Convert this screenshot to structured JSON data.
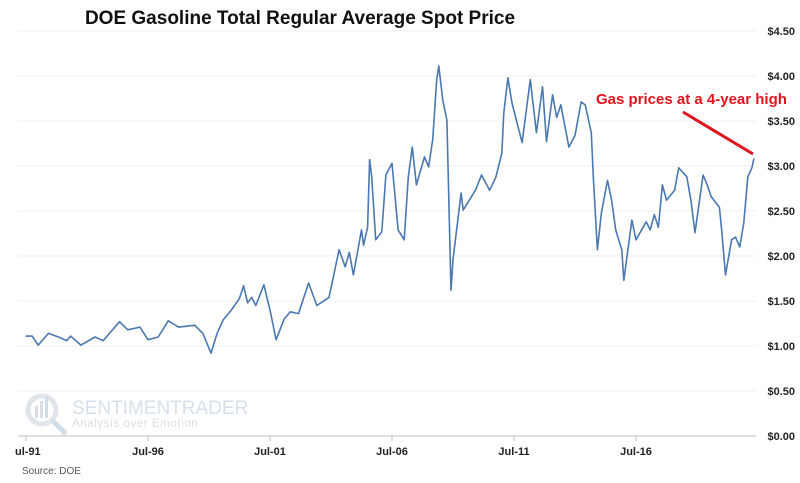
{
  "chart_data": {
    "type": "line",
    "title": "DOE Gasoline Total Regular Average Spot Price",
    "xlabel": "",
    "ylabel": "",
    "x_tick_labels": [
      "ul-91",
      "Jul-96",
      "Jul-01",
      "Jul-06",
      "Jul-11",
      "Jul-16"
    ],
    "y_tick_labels": [
      "$0.00",
      "$0.50",
      "$1.00",
      "$1.50",
      "$2.00",
      "$2.50",
      "$3.00",
      "$3.50",
      "$4.00",
      "$4.50"
    ],
    "ylim": [
      0,
      4.5
    ],
    "xlim": [
      "1991-07",
      "2021-05"
    ],
    "grid": true,
    "legend": "none",
    "series_color": "#4a78b0",
    "annotation": {
      "text": "Gas prices at a 4-year high",
      "color": "#e0141e"
    },
    "source": "Source: DOE",
    "watermark": {
      "brand": "SENTIMENTRADER",
      "tagline": "Analysis over Emotion"
    },
    "series": [
      {
        "x": [
          "1991-07",
          "1991-10",
          "1992-01",
          "1992-06",
          "1992-11",
          "1993-03",
          "1993-05",
          "1993-10",
          "1994-05",
          "1994-09",
          "1995-05",
          "1995-09",
          "1996-03",
          "1996-07",
          "1996-12",
          "1997-05",
          "1997-10",
          "1998-06",
          "1998-10",
          "1999-02",
          "1999-05",
          "1999-08",
          "1999-12",
          "2000-04",
          "2000-06",
          "2000-08",
          "2000-10",
          "2000-12",
          "2001-04",
          "2001-07",
          "2001-10",
          "2002-02",
          "2002-05",
          "2002-09",
          "2003-02",
          "2003-06",
          "2003-12",
          "2004-05",
          "2004-08",
          "2004-10",
          "2004-12",
          "2005-04",
          "2005-05",
          "2005-07",
          "2005-08",
          "2005-09",
          "2005-11",
          "2006-02",
          "2006-04",
          "2006-07",
          "2006-10",
          "2007-01",
          "2007-03",
          "2007-05",
          "2007-07",
          "2007-11",
          "2008-01",
          "2008-03",
          "2008-05",
          "2008-06",
          "2008-08",
          "2008-10",
          "2008-12",
          "2009-01",
          "2009-05",
          "2009-06",
          "2009-12",
          "2010-03",
          "2010-07",
          "2010-10",
          "2011-01",
          "2011-02",
          "2011-04",
          "2011-06",
          "2011-11",
          "2012-03",
          "2012-06",
          "2012-09",
          "2012-11",
          "2013-02",
          "2013-04",
          "2013-06",
          "2013-10",
          "2014-01",
          "2014-04",
          "2014-06",
          "2014-09",
          "2014-10",
          "2014-12",
          "2015-02",
          "2015-05",
          "2015-07",
          "2015-09",
          "2015-12",
          "2016-01",
          "2016-03",
          "2016-05",
          "2016-07",
          "2016-12",
          "2017-02",
          "2017-04",
          "2017-06",
          "2017-08",
          "2017-10",
          "2018-02",
          "2018-04",
          "2018-08",
          "2018-10",
          "2018-12",
          "2019-04",
          "2019-06",
          "2019-08",
          "2019-12",
          "2020-01",
          "2020-03",
          "2020-06",
          "2020-08",
          "2020-10",
          "2020-12",
          "2021-02",
          "2021-04",
          "2021-05"
        ],
        "y": [
          1.11,
          1.11,
          1.01,
          1.14,
          1.1,
          1.06,
          1.11,
          1.01,
          1.1,
          1.06,
          1.27,
          1.18,
          1.21,
          1.07,
          1.1,
          1.28,
          1.21,
          1.23,
          1.14,
          0.92,
          1.14,
          1.29,
          1.4,
          1.53,
          1.67,
          1.48,
          1.54,
          1.45,
          1.68,
          1.4,
          1.07,
          1.3,
          1.38,
          1.36,
          1.7,
          1.45,
          1.54,
          2.07,
          1.88,
          2.04,
          1.79,
          2.29,
          2.12,
          2.32,
          3.07,
          2.88,
          2.18,
          2.27,
          2.9,
          3.03,
          2.29,
          2.18,
          2.88,
          3.21,
          2.79,
          3.1,
          2.99,
          3.29,
          3.96,
          4.11,
          3.73,
          3.51,
          1.62,
          1.96,
          2.7,
          2.51,
          2.73,
          2.9,
          2.73,
          2.87,
          3.14,
          3.59,
          3.98,
          3.7,
          3.26,
          3.96,
          3.37,
          3.88,
          3.27,
          3.79,
          3.54,
          3.68,
          3.21,
          3.34,
          3.71,
          3.68,
          3.37,
          2.88,
          2.07,
          2.48,
          2.84,
          2.62,
          2.29,
          2.07,
          1.73,
          2.07,
          2.4,
          2.18,
          2.38,
          2.29,
          2.46,
          2.32,
          2.79,
          2.62,
          2.73,
          2.98,
          2.88,
          2.62,
          2.26,
          2.9,
          2.79,
          2.66,
          2.54,
          2.32,
          1.79,
          2.18,
          2.21,
          2.1,
          2.37,
          2.88,
          2.98,
          3.08
        ]
      }
    ]
  }
}
